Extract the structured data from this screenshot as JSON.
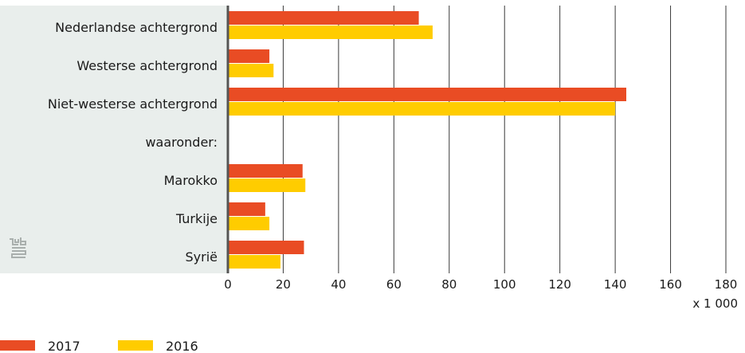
{
  "chart_data": {
    "type": "bar",
    "orientation": "horizontal",
    "categories": [
      "Nederlandse achtergrond",
      "Westerse achtergrond",
      "Niet-westerse achtergrond",
      "waaronder:",
      "Marokko",
      "Turkije",
      "Syrië"
    ],
    "series": [
      {
        "name": "2017",
        "color": "#e94c24",
        "values": [
          69,
          15,
          144,
          null,
          27,
          13.5,
          27.5
        ]
      },
      {
        "name": "2016",
        "color": "#ffcc00",
        "values": [
          74,
          16.5,
          140,
          null,
          28,
          15,
          19
        ]
      }
    ],
    "xlim": [
      0,
      180
    ],
    "xticks": [
      0,
      20,
      40,
      60,
      80,
      100,
      120,
      140,
      160,
      180
    ],
    "x_unit_label": "x 1 000",
    "grid": "vertical",
    "legend": "bottom-left"
  },
  "colors": {
    "label_panel": "#e9eeec",
    "grid": "#3a3a3a",
    "axis": "#555555",
    "logo": "#a9afad"
  },
  "logo_icon": "cbs-logo-icon"
}
